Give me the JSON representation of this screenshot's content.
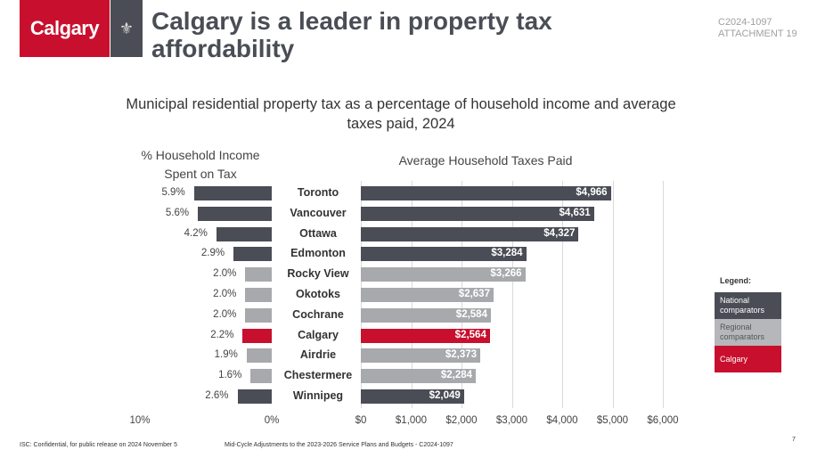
{
  "header": {
    "logo_text": "Calgary",
    "title": "Calgary is a leader in property tax affordability",
    "doc_ref": [
      "C2024-1097",
      "ATTACHMENT 19"
    ]
  },
  "subtitle": "Municipal residential property tax as a percentage of household income and average taxes paid, 2024",
  "colors": {
    "national": "#4a4d55",
    "regional": "#a7a9ac",
    "calgary": "#c8102e"
  },
  "chart_data": [
    {
      "type": "bar",
      "orientation": "horizontal-reversed",
      "title": "% Household Income Spent on Tax",
      "categories": [
        "Toronto",
        "Vancouver",
        "Ottawa",
        "Edmonton",
        "Rocky View",
        "Okotoks",
        "Cochrane",
        "Calgary",
        "Airdrie",
        "Chestermere",
        "Winnipeg"
      ],
      "values": [
        5.9,
        5.6,
        4.2,
        2.9,
        2.0,
        2.0,
        2.0,
        2.2,
        1.9,
        1.6,
        2.6
      ],
      "labels": [
        "5.9%",
        "5.6%",
        "4.2%",
        "2.9%",
        "2.0%",
        "2.0%",
        "2.0%",
        "2.2%",
        "1.9%",
        "1.6%",
        "2.6%"
      ],
      "groups": [
        "national",
        "national",
        "national",
        "national",
        "regional",
        "regional",
        "regional",
        "calgary",
        "regional",
        "regional",
        "national"
      ],
      "xlim": [
        0,
        10
      ],
      "ticks": [
        "10%",
        "0%"
      ],
      "grid": false
    },
    {
      "type": "bar",
      "orientation": "horizontal",
      "title": "Average Household Taxes Paid",
      "categories": [
        "Toronto",
        "Vancouver",
        "Ottawa",
        "Edmonton",
        "Rocky View",
        "Okotoks",
        "Cochrane",
        "Calgary",
        "Airdrie",
        "Chestermere",
        "Winnipeg"
      ],
      "values": [
        4966,
        4631,
        4327,
        3284,
        3266,
        2637,
        2584,
        2564,
        2373,
        2284,
        2049
      ],
      "labels": [
        "$4,966",
        "$4,631",
        "$4,327",
        "$3,284",
        "$3,266",
        "$2,637",
        "$2,584",
        "$2,564",
        "$2,373",
        "$2,284",
        "$2,049"
      ],
      "groups": [
        "national",
        "national",
        "national",
        "national",
        "regional",
        "regional",
        "regional",
        "calgary",
        "regional",
        "regional",
        "national"
      ],
      "xlim": [
        0,
        6000
      ],
      "ticks": [
        "$0",
        "$1,000",
        "$2,000",
        "$3,000",
        "$4,000",
        "$5,000",
        "$6,000"
      ],
      "grid": true
    }
  ],
  "legend": {
    "title": "Legend:",
    "items": [
      {
        "label": "National comparators",
        "group": "national"
      },
      {
        "label": "Regional comparators",
        "group": "regional"
      },
      {
        "label": "Calgary",
        "group": "calgary"
      }
    ]
  },
  "footer": {
    "left": "ISC: Confidential, for public release on 2024 November 5",
    "center": "Mid-Cycle Adjustments to the 2023-2026 Service Plans and Budgets - C2024-1097",
    "page": "7"
  }
}
